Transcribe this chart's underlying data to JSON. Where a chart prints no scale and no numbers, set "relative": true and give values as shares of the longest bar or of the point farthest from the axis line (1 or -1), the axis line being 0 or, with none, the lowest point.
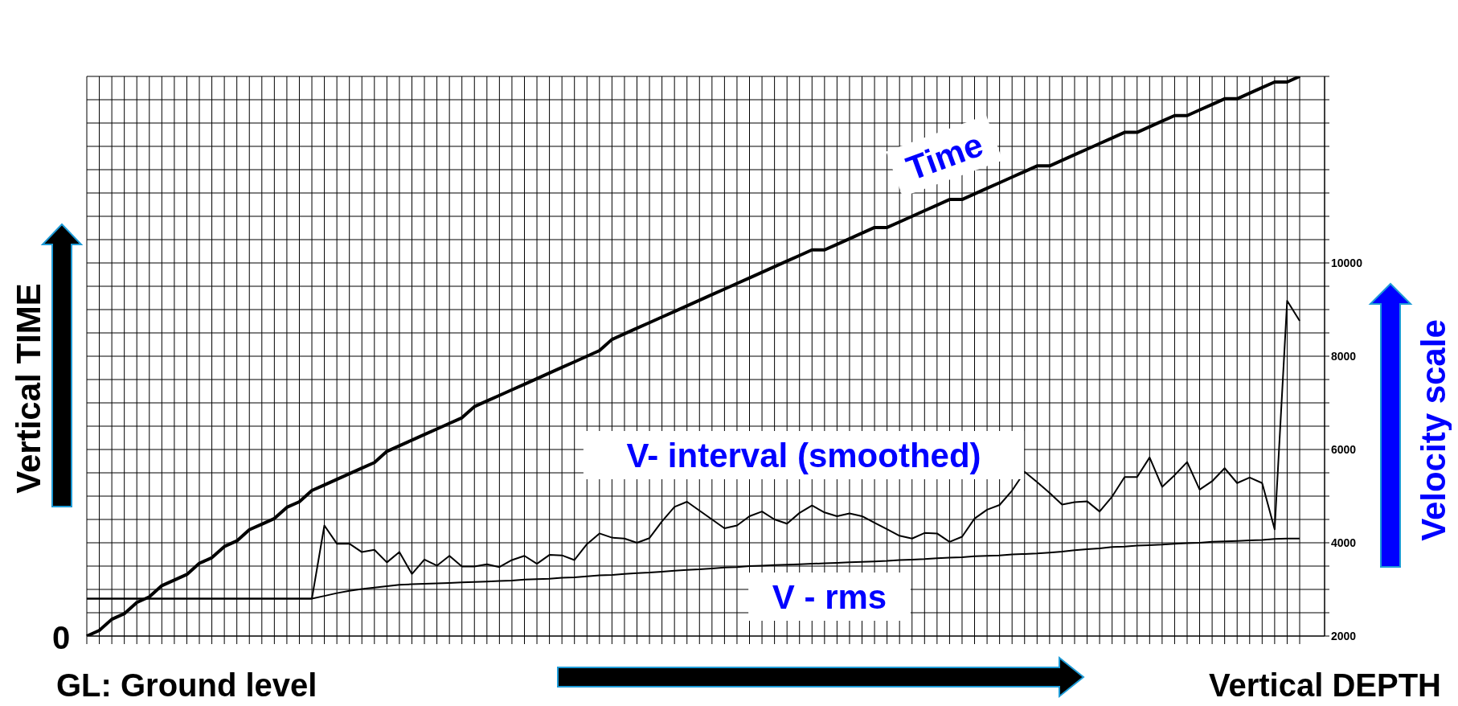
{
  "chart_data": [
    {
      "type": "line",
      "ylabel": "Vertical TIME",
      "annotations": [
        "0"
      ],
      "relative": true,
      "marker": "none",
      "categories": [
        null,
        null,
        null,
        null,
        null,
        null,
        null,
        null,
        null,
        null,
        null,
        null,
        null,
        null,
        null,
        null,
        null,
        null,
        null,
        null,
        null,
        null,
        null,
        null,
        null,
        null,
        null,
        null,
        null,
        null,
        null,
        null,
        null,
        null,
        null,
        null,
        null,
        null,
        null,
        null,
        null,
        null,
        null,
        null,
        null,
        null,
        null,
        null,
        null,
        null,
        null,
        null,
        null,
        null,
        null,
        null,
        null,
        null,
        null,
        null,
        null,
        null,
        null,
        null,
        null,
        null,
        null,
        null,
        null,
        null,
        null,
        null,
        null,
        null,
        null,
        null,
        null,
        null,
        null,
        null,
        null,
        null,
        null,
        null,
        null,
        null,
        null,
        null,
        null,
        null,
        null,
        null,
        null,
        null,
        null,
        null,
        null,
        null
      ],
      "series": [
        {
          "name": "Time",
          "color": "#000000",
          "values": [
            0,
            0.01,
            0.03,
            0.04,
            0.06,
            0.07,
            0.09,
            0.1,
            0.11,
            0.13,
            0.14,
            0.16,
            0.17,
            0.19,
            0.2,
            0.21,
            0.23,
            0.24,
            0.26,
            0.27,
            0.28,
            0.29,
            0.3,
            0.31,
            0.33,
            0.34,
            0.35,
            0.36,
            0.37,
            0.38,
            0.39,
            0.41,
            0.42,
            0.43,
            0.44,
            0.45,
            0.46,
            0.47,
            0.48,
            0.49,
            0.5,
            0.51,
            0.53,
            0.54,
            0.55,
            0.56,
            0.57,
            0.58,
            0.59,
            0.6,
            0.61,
            0.62,
            0.63,
            0.64,
            0.65,
            0.66,
            0.67,
            0.68,
            0.69,
            0.69,
            0.7,
            0.71,
            0.72,
            0.73,
            0.73,
            0.74,
            0.75,
            0.76,
            0.77,
            0.78,
            0.78,
            0.79,
            0.8,
            0.81,
            0.82,
            0.83,
            0.84,
            0.84,
            0.85,
            0.86,
            0.87,
            0.88,
            0.89,
            0.9,
            0.9,
            0.91,
            0.92,
            0.93,
            0.93,
            0.94,
            0.95,
            0.96,
            0.96,
            0.97,
            0.98,
            0.99,
            0.99,
            1
          ]
        }
      ]
    },
    {
      "type": "line",
      "xlabel": "Vertical DEPTH",
      "ylabel": "Velocity scale",
      "annotations": [
        "GL: Ground level"
      ],
      "grid": true,
      "marker": "none",
      "categories": [
        null,
        null,
        null,
        null,
        null,
        null,
        null,
        null,
        null,
        null,
        null,
        null,
        null,
        null,
        null,
        null,
        null,
        null,
        null,
        null,
        null,
        null,
        null,
        null,
        null,
        null,
        null,
        null,
        null,
        null,
        null,
        null,
        null,
        null,
        null,
        null,
        null,
        null,
        null,
        null,
        null,
        null,
        null,
        null,
        null,
        null,
        null,
        null,
        null,
        null,
        null,
        null,
        null,
        null,
        null,
        null,
        null,
        null,
        null,
        null,
        null,
        null,
        null,
        null,
        null,
        null,
        null,
        null,
        null,
        null,
        null,
        null,
        null,
        null,
        null,
        null,
        null,
        null,
        null,
        null,
        null,
        null,
        null,
        null,
        null,
        null,
        null,
        null,
        null,
        null,
        null,
        null,
        null,
        null,
        null,
        null,
        null,
        null
      ],
      "ylim": [
        2000,
        14000
      ],
      "yticks": [
        2000,
        {
          "value": 2500,
          "label": null
        },
        {
          "value": 3000,
          "label": null
        },
        {
          "value": 3500,
          "label": null
        },
        4000,
        {
          "value": 4500,
          "label": null
        },
        {
          "value": 5000,
          "label": null
        },
        {
          "value": 5500,
          "label": null
        },
        6000,
        {
          "value": 6500,
          "label": null
        },
        {
          "value": 7000,
          "label": null
        },
        {
          "value": 7500,
          "label": null
        },
        8000,
        {
          "value": 8500,
          "label": null
        },
        {
          "value": 9000,
          "label": null
        },
        {
          "value": 9500,
          "label": null
        },
        10000,
        {
          "value": 10500,
          "label": null
        },
        {
          "value": 11000,
          "label": null
        },
        {
          "value": 11500,
          "label": null
        },
        {
          "value": 12000,
          "label": null
        },
        {
          "value": 12500,
          "label": null
        },
        {
          "value": 13000,
          "label": null
        },
        {
          "value": 13500,
          "label": null
        },
        {
          "value": 14000,
          "label": null
        }
      ],
      "series": [
        {
          "name": "V- interval (smoothed)",
          "color": "#000000",
          "values": [
            2800,
            2800,
            2800,
            2800,
            2800,
            2800,
            2800,
            2800,
            2800,
            2800,
            2800,
            2800,
            2800,
            2800,
            2800,
            2800,
            2800,
            2800,
            2800,
            4370,
            3980,
            3980,
            3800,
            3850,
            3580,
            3800,
            3330,
            3640,
            3510,
            3720,
            3490,
            3490,
            3540,
            3480,
            3630,
            3720,
            3550,
            3740,
            3730,
            3630,
            3970,
            4200,
            4110,
            4090,
            4000,
            4100,
            4460,
            4770,
            4880,
            4690,
            4500,
            4310,
            4370,
            4570,
            4670,
            4500,
            4410,
            4640,
            4800,
            4650,
            4570,
            4630,
            4570,
            4430,
            4290,
            4150,
            4090,
            4210,
            4200,
            4020,
            4130,
            4520,
            4710,
            4810,
            5120,
            5520,
            5300,
            5070,
            4820,
            4870,
            4890,
            4670,
            4990,
            5410,
            5410,
            5830,
            5200,
            5450,
            5730,
            5140,
            5320,
            5600,
            5280,
            5400,
            5280,
            4290,
            9190,
            8760
          ]
        },
        {
          "name": "V - rms",
          "color": "#000000",
          "values": [
            2800,
            2800,
            2800,
            2800,
            2800,
            2800,
            2800,
            2800,
            2800,
            2800,
            2800,
            2800,
            2800,
            2800,
            2800,
            2800,
            2800,
            2800,
            2800,
            2860,
            2920,
            2970,
            3010,
            3040,
            3070,
            3100,
            3110,
            3120,
            3130,
            3140,
            3150,
            3160,
            3170,
            3180,
            3190,
            3210,
            3220,
            3230,
            3250,
            3260,
            3280,
            3300,
            3310,
            3330,
            3350,
            3360,
            3380,
            3400,
            3420,
            3430,
            3450,
            3470,
            3480,
            3500,
            3510,
            3520,
            3530,
            3540,
            3550,
            3560,
            3570,
            3580,
            3590,
            3600,
            3610,
            3630,
            3640,
            3650,
            3670,
            3680,
            3690,
            3710,
            3720,
            3730,
            3750,
            3760,
            3770,
            3790,
            3810,
            3840,
            3860,
            3880,
            3910,
            3920,
            3940,
            3950,
            3960,
            3980,
            3990,
            4000,
            4020,
            4030,
            4040,
            4050,
            4060,
            4080,
            4090,
            4090
          ]
        }
      ]
    }
  ]
}
